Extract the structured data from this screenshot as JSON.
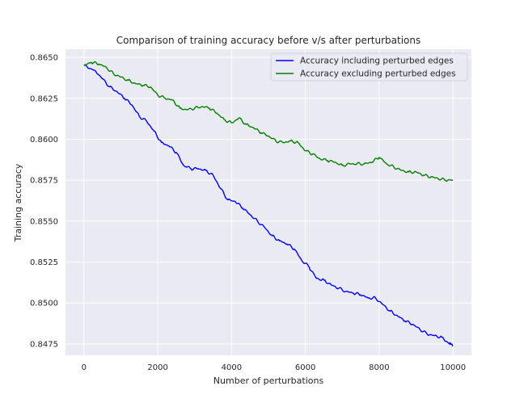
{
  "chart_data": {
    "type": "line",
    "title": "Comparison of training accuracy before v/s after perturbations",
    "xlabel": "Number of perturbations",
    "ylabel": "Training accuracy",
    "xlim": [
      -500,
      10500
    ],
    "ylim": [
      0.8468,
      0.8655
    ],
    "xticks": [
      0,
      2000,
      4000,
      6000,
      8000,
      10000
    ],
    "xtick_labels": [
      "0",
      "2000",
      "4000",
      "6000",
      "8000",
      "10000"
    ],
    "yticks": [
      0.8475,
      0.85,
      0.8525,
      0.855,
      0.8575,
      0.86,
      0.8625,
      0.865
    ],
    "ytick_labels": [
      "0.8475",
      "0.8500",
      "0.8525",
      "0.8550",
      "0.8575",
      "0.8600",
      "0.8625",
      "0.8650"
    ],
    "grid": true,
    "legend_position": "top-right",
    "background": "#eaeaf2",
    "series": [
      {
        "name": "Accuracy including perturbed edges",
        "color": "#0000ff",
        "x": [
          0,
          300,
          500,
          700,
          900,
          1100,
          1300,
          1500,
          1700,
          1900,
          2100,
          2300,
          2500,
          2700,
          2900,
          3100,
          3300,
          3500,
          3700,
          3900,
          4100,
          4300,
          4500,
          4700,
          4900,
          5100,
          5300,
          5500,
          5700,
          5900,
          6100,
          6300,
          6500,
          6700,
          6900,
          7100,
          7300,
          7500,
          7700,
          7900,
          8100,
          8300,
          8500,
          8700,
          8900,
          9100,
          9300,
          9500,
          9700,
          9900,
          10000
        ],
        "y": [
          0.8645,
          0.8642,
          0.8637,
          0.8632,
          0.8629,
          0.8625,
          0.8621,
          0.8614,
          0.8611,
          0.8605,
          0.8598,
          0.8596,
          0.8592,
          0.8584,
          0.8582,
          0.8582,
          0.8581,
          0.8578,
          0.857,
          0.8563,
          0.8562,
          0.8558,
          0.8554,
          0.855,
          0.8546,
          0.8541,
          0.8538,
          0.8536,
          0.8533,
          0.8526,
          0.8522,
          0.8515,
          0.8514,
          0.8511,
          0.8509,
          0.8507,
          0.8506,
          0.8505,
          0.8503,
          0.8503,
          0.8499,
          0.8495,
          0.8492,
          0.8489,
          0.8487,
          0.8484,
          0.8481,
          0.848,
          0.8479,
          0.8475,
          0.8474
        ]
      },
      {
        "name": "Accuracy excluding perturbed edges",
        "color": "#008000",
        "x": [
          0,
          200,
          400,
          600,
          800,
          1000,
          1200,
          1400,
          1600,
          1800,
          2000,
          2200,
          2400,
          2600,
          2800,
          3000,
          3200,
          3400,
          3600,
          3800,
          4000,
          4200,
          4400,
          4600,
          4800,
          5000,
          5200,
          5400,
          5600,
          5800,
          6000,
          6200,
          6400,
          6600,
          6800,
          7000,
          7200,
          7400,
          7600,
          7800,
          8000,
          8200,
          8400,
          8600,
          8800,
          9000,
          9200,
          9400,
          9600,
          9800,
          10000
        ],
        "y": [
          0.8645,
          0.8647,
          0.8646,
          0.8644,
          0.864,
          0.8638,
          0.8636,
          0.8634,
          0.8633,
          0.8632,
          0.8627,
          0.8625,
          0.8624,
          0.8619,
          0.8618,
          0.8619,
          0.862,
          0.8619,
          0.8616,
          0.8612,
          0.861,
          0.8613,
          0.8609,
          0.8607,
          0.8604,
          0.8602,
          0.8599,
          0.8598,
          0.8599,
          0.8598,
          0.8593,
          0.8591,
          0.8588,
          0.8587,
          0.8586,
          0.8584,
          0.8585,
          0.8585,
          0.8585,
          0.8586,
          0.8589,
          0.8585,
          0.8583,
          0.8581,
          0.858,
          0.858,
          0.8578,
          0.8577,
          0.8576,
          0.8575,
          0.8575
        ]
      }
    ]
  }
}
